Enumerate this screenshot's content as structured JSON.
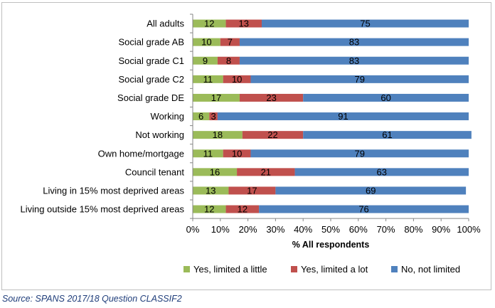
{
  "chart_data": {
    "type": "bar",
    "orientation": "horizontal",
    "stacked": true,
    "percent_stacked": true,
    "categories": [
      "All adults",
      "Social grade AB",
      "Social grade C1",
      "Social grade C2",
      "Social grade DE",
      "Working",
      "Not working",
      "Own home/mortgage",
      "Council tenant",
      "Living in 15% most deprived areas",
      "Living outside 15% most deprived areas"
    ],
    "series": [
      {
        "name": "Yes, limited a little",
        "color": "#9bbb59",
        "values": [
          12,
          10,
          9,
          11,
          17,
          6,
          18,
          11,
          16,
          13,
          12
        ]
      },
      {
        "name": "Yes, limited a lot",
        "color": "#c0504d",
        "values": [
          13,
          7,
          8,
          10,
          23,
          3,
          22,
          10,
          21,
          17,
          12
        ]
      },
      {
        "name": "No, not limited",
        "color": "#4f81bd",
        "values": [
          75,
          83,
          83,
          79,
          60,
          91,
          61,
          79,
          63,
          69,
          76
        ]
      }
    ],
    "xlabel": "% All respondents",
    "xlim": [
      0,
      100
    ],
    "xticks": [
      "0%",
      "10%",
      "20%",
      "30%",
      "40%",
      "50%",
      "60%",
      "70%",
      "80%",
      "90%",
      "100%"
    ],
    "grid": false,
    "legend_position": "bottom"
  },
  "source": "Source: SPANS 2017/18 Question CLASSIF2"
}
